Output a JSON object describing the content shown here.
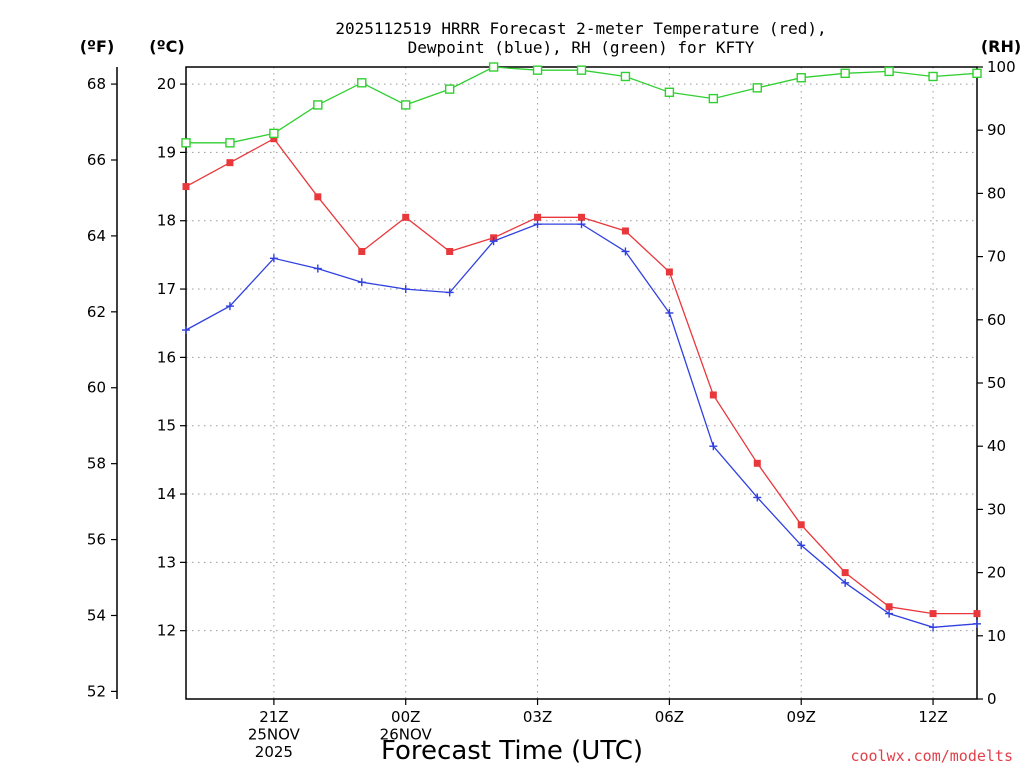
{
  "chart_data": {
    "type": "line",
    "title_line1": "2025112519 HRRR Forecast 2-meter Temperature (red),",
    "title_line2": "Dewpoint (blue), RH (green) for KFTY",
    "xlabel": "Forecast Time (UTC)",
    "credit": "coolwx.com/modelts",
    "units": {
      "fahrenheit": "(ºF)",
      "celsius": "(ºC)",
      "rh": "(RH)"
    },
    "x_ticks": [
      {
        "hour": 2,
        "labels": [
          "21Z",
          "25NOV",
          "2025"
        ]
      },
      {
        "hour": 5,
        "labels": [
          "00Z",
          "26NOV"
        ]
      },
      {
        "hour": 8,
        "labels": [
          "03Z"
        ]
      },
      {
        "hour": 11,
        "labels": [
          "06Z"
        ]
      },
      {
        "hour": 14,
        "labels": [
          "09Z"
        ]
      },
      {
        "hour": 17,
        "labels": [
          "12Z"
        ]
      }
    ],
    "xlim": [
      0,
      18
    ],
    "ylim_celsius": [
      11,
      20.25
    ],
    "ylim_rh": [
      0,
      100
    ],
    "fahrenheit_ticks": [
      52,
      54,
      56,
      58,
      60,
      62,
      64,
      66,
      68
    ],
    "celsius_ticks": [
      12,
      13,
      14,
      15,
      16,
      17,
      18,
      19,
      20
    ],
    "rh_ticks": [
      0,
      10,
      20,
      30,
      40,
      50,
      60,
      70,
      80,
      90,
      100
    ],
    "series": [
      {
        "name": "Temperature",
        "color": "#e8383c",
        "marker": "filled-square",
        "axis": "celsius",
        "values": [
          18.5,
          18.85,
          19.2,
          18.35,
          17.55,
          18.05,
          17.55,
          17.75,
          18.05,
          18.05,
          17.85,
          17.25,
          15.45,
          14.45,
          13.55,
          12.85,
          12.35,
          12.25,
          12.25
        ]
      },
      {
        "name": "Dewpoint",
        "color": "#3040e0",
        "marker": "plus",
        "axis": "celsius",
        "values": [
          16.4,
          16.75,
          17.45,
          17.3,
          17.1,
          17.0,
          16.95,
          17.7,
          17.95,
          17.95,
          17.55,
          16.65,
          14.7,
          13.95,
          13.25,
          12.7,
          12.25,
          12.05,
          12.1
        ]
      },
      {
        "name": "RH",
        "color": "#30d030",
        "marker": "open-square",
        "axis": "rh",
        "values": [
          88,
          88,
          89.5,
          94,
          97.5,
          94,
          96.5,
          100,
          99.5,
          99.5,
          98.5,
          96,
          95,
          96.7,
          98.3,
          99,
          99.3,
          98.5,
          99
        ]
      }
    ]
  }
}
